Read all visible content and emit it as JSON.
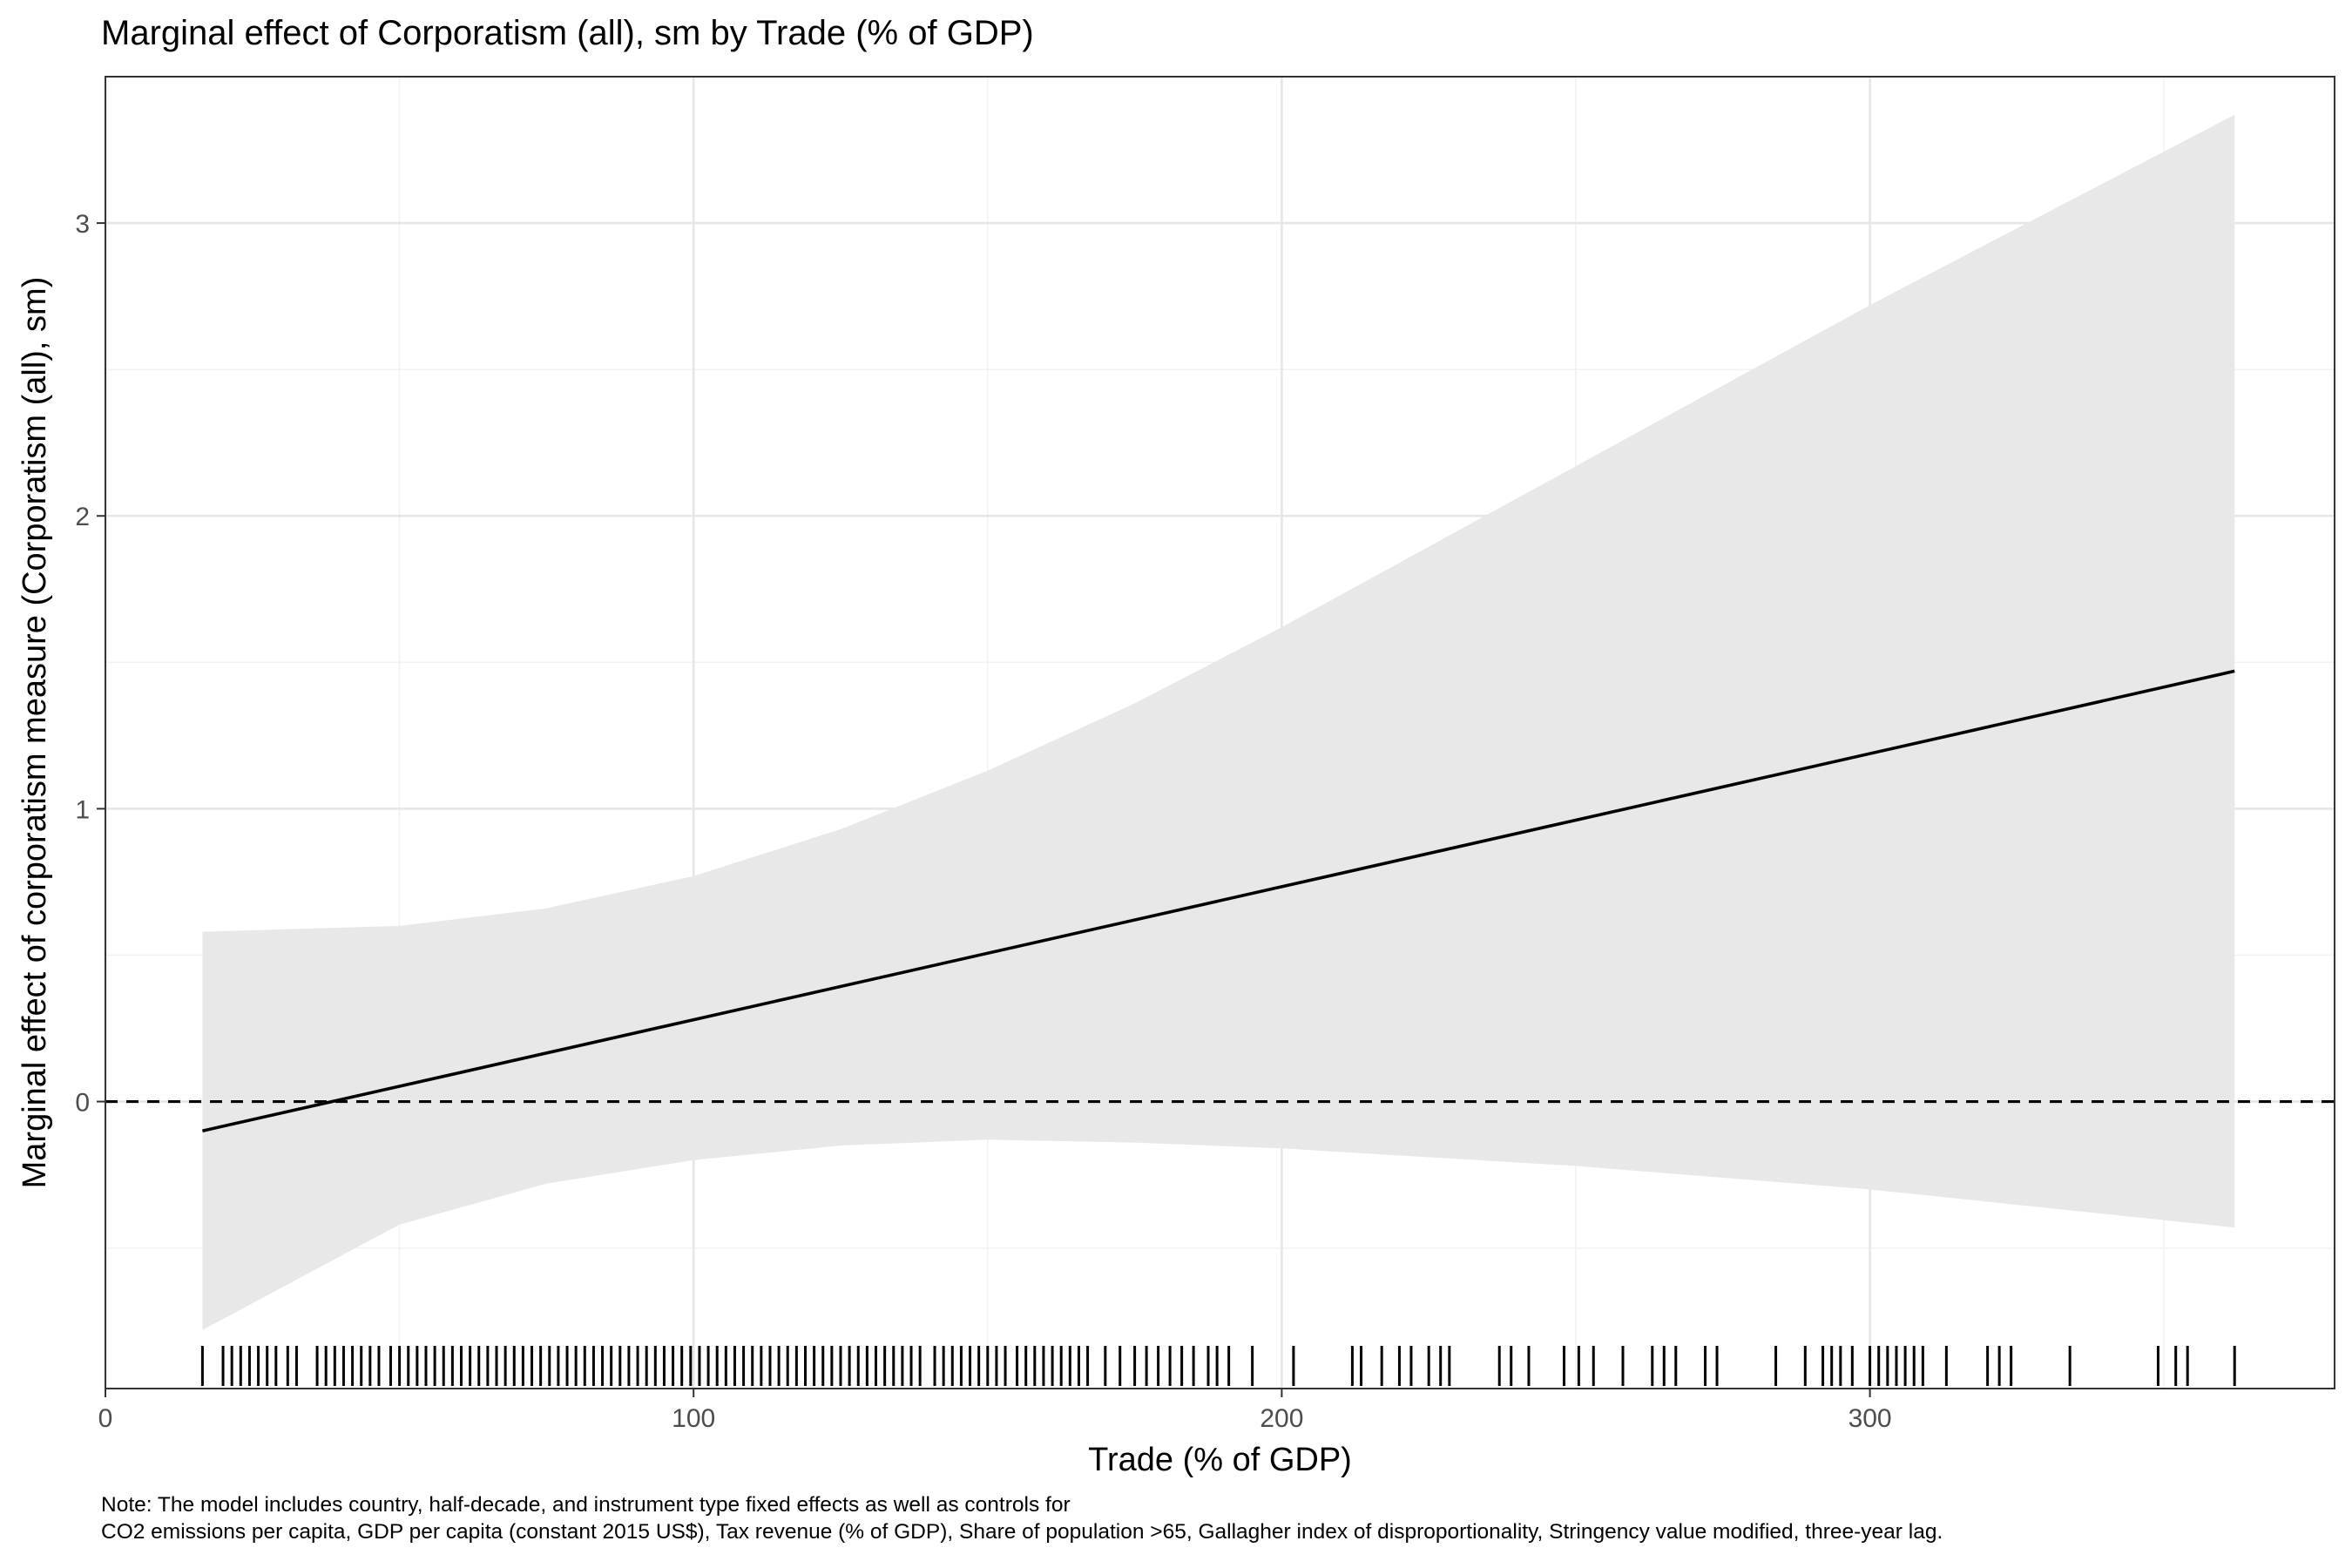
{
  "chart_data": {
    "type": "line",
    "title": "Marginal effect of Corporatism (all), sm by Trade (% of GDP)",
    "xlabel": "Trade (% of GDP)",
    "ylabel": "Marginal effect of corporatism measure (Corporatism (all), sm)",
    "xlim": [
      0,
      379
    ],
    "ylim": [
      -0.98,
      3.5
    ],
    "x_ticks": [
      0,
      100,
      200,
      300
    ],
    "x_tick_labels": [
      "0",
      "100",
      "200",
      "300"
    ],
    "y_ticks": [
      0,
      1,
      2,
      3
    ],
    "y_tick_labels": [
      "0",
      "1",
      "2",
      "3"
    ],
    "grid": true,
    "legend": "none",
    "reference_line": {
      "y": 0,
      "style": "dashed"
    },
    "series": [
      {
        "type": "line",
        "x": [
          16.5,
          362
        ],
        "y": [
          -0.1,
          1.47
        ]
      },
      {
        "type": "ribbon",
        "x": [
          16.5,
          50,
          75,
          100,
          125,
          150,
          175,
          200,
          250,
          300,
          362
        ],
        "lower": [
          -0.78,
          -0.42,
          -0.28,
          -0.2,
          -0.15,
          -0.13,
          -0.14,
          -0.16,
          -0.22,
          -0.3,
          -0.43
        ],
        "upper": [
          0.58,
          0.6,
          0.66,
          0.77,
          0.93,
          1.13,
          1.36,
          1.62,
          2.17,
          2.72,
          3.37
        ]
      }
    ],
    "rug_x": [
      16.5,
      20,
      21.5,
      23,
      24.5,
      26,
      27.5,
      29,
      31,
      32.5,
      36,
      37.5,
      39,
      40.5,
      42,
      43.5,
      45,
      46.5,
      48.5,
      50,
      51.5,
      53,
      54.5,
      56,
      57.5,
      59,
      60.5,
      62,
      63.5,
      65,
      66.5,
      68,
      69.5,
      71,
      72.5,
      74,
      75.5,
      77,
      78.5,
      80,
      81.5,
      83,
      84.5,
      86,
      87.5,
      89,
      90.5,
      92,
      93.5,
      95,
      96.5,
      98,
      99.5,
      101,
      102.5,
      104,
      105.5,
      107,
      108.5,
      110,
      111.5,
      113,
      114.5,
      116,
      117.5,
      119,
      120.5,
      122,
      123.5,
      125,
      126.5,
      128,
      129.5,
      131,
      132.5,
      134,
      135.5,
      137,
      138.5,
      141,
      142.5,
      144,
      145.5,
      147,
      148.5,
      150,
      151.5,
      153,
      155,
      156.5,
      158,
      159.5,
      161,
      162.5,
      164,
      165.5,
      167,
      170,
      172.5,
      175,
      177,
      179,
      181,
      183,
      185,
      187.5,
      189,
      191,
      195,
      202,
      212,
      213.5,
      217,
      220,
      222,
      225,
      227,
      228.5,
      237,
      239,
      242,
      248,
      250.5,
      253,
      258,
      263,
      265,
      267,
      272,
      274,
      284,
      289,
      292,
      293.5,
      295,
      297,
      300,
      301.5,
      303,
      304.5,
      306,
      307.5,
      309,
      313,
      320,
      322,
      324,
      334,
      349,
      352,
      354,
      362
    ]
  },
  "note": {
    "line1": "Note: The model includes country, half-decade, and instrument type fixed effects as well as controls for",
    "line2": "CO2 emissions per capita, GDP per capita (constant 2015 US$), Tax revenue (% of GDP), Share of population >65, Gallagher index of disproportionality, Stringency value modified, three-year lag."
  },
  "colors": {
    "ribbon": "#e8e8e8",
    "line": "#000000",
    "grid_major": "#e6e6e6",
    "grid_minor": "#f2f2f2",
    "panel_border": "#333333",
    "tick_text": "#4d4d4d"
  }
}
